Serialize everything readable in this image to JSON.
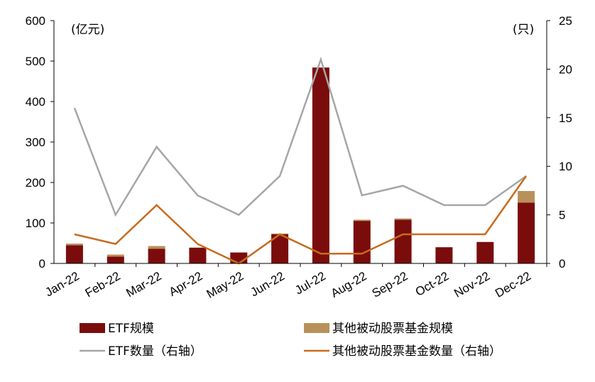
{
  "chart_data": {
    "type": "bar",
    "categories": [
      "Jan-22",
      "Feb-22",
      "Mar-22",
      "Apr-22",
      "May-22",
      "Jun-22",
      "Jul-22",
      "Aug-22",
      "Sep-22",
      "Oct-22",
      "Nov-22",
      "Dec-22"
    ],
    "y_left": {
      "unit": "(亿元)",
      "range": [
        0,
        600
      ],
      "ticks": [
        "0",
        "100",
        "200",
        "300",
        "400",
        "500",
        "600"
      ]
    },
    "y_right": {
      "unit": "(只)",
      "range": [
        0,
        25
      ],
      "ticks": [
        "0",
        "5",
        "10",
        "15",
        "20",
        "25"
      ]
    },
    "bar_series": [
      {
        "name": "ETF规模",
        "color": "#7b0c0c",
        "axis": "left",
        "values": [
          45,
          17,
          36,
          39,
          27,
          72,
          484,
          105,
          108,
          40,
          53,
          150
        ]
      },
      {
        "name": "其他被动股票基金规模",
        "color": "#b8915a",
        "axis": "left",
        "stacked": true,
        "values": [
          4,
          5,
          7,
          0,
          0,
          2,
          0,
          3,
          3,
          0,
          0,
          29
        ]
      }
    ],
    "line_series": [
      {
        "name": "ETF数量（右轴）",
        "color": "#a6a6a6",
        "axis": "right",
        "values": [
          16,
          5,
          12,
          7,
          5,
          9,
          21,
          7,
          8,
          6,
          6,
          9
        ]
      },
      {
        "name": "其他被动股票基金数量（右轴）",
        "color": "#c86b1e",
        "axis": "right",
        "values": [
          3,
          2,
          6,
          2,
          0,
          3,
          1,
          1,
          3,
          3,
          3,
          9
        ]
      }
    ],
    "legend_position": "bottom",
    "grid": false
  }
}
